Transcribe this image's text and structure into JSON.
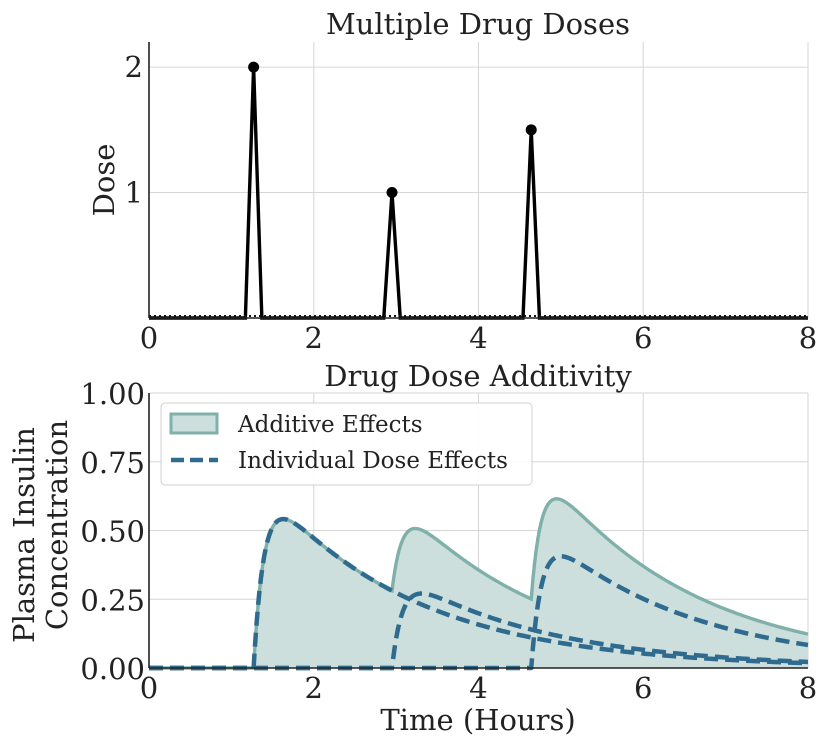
{
  "chart_data": [
    {
      "type": "line",
      "title": "Multiple Drug Doses",
      "xlabel": "",
      "ylabel": "Dose",
      "xlim": [
        0,
        8
      ],
      "ylim": [
        0,
        2.2
      ],
      "xticks": [
        "0",
        "2",
        "4",
        "6",
        "8"
      ],
      "yticks": [
        "1",
        "2"
      ],
      "grid": true,
      "series": [
        {
          "name": "Dose",
          "color": "#000000",
          "x": [
            0,
            1.17,
            1.27,
            1.37,
            2.85,
            2.95,
            3.05,
            4.54,
            4.64,
            4.74,
            8
          ],
          "y": [
            0,
            0,
            2,
            0,
            0,
            1,
            0,
            0,
            1.5,
            0,
            0
          ]
        }
      ],
      "markers": {
        "x": [
          1.27,
          2.95,
          4.64
        ],
        "y": [
          2,
          1,
          1.5
        ]
      }
    },
    {
      "type": "area",
      "title": "Drug Dose Additivity",
      "xlabel": "Time (Hours)",
      "ylabel_lines": [
        "Plasma Insulin",
        "Concentration"
      ],
      "xlim": [
        0,
        8
      ],
      "ylim": [
        0,
        1
      ],
      "xticks": [
        "0",
        "2",
        "4",
        "6",
        "8"
      ],
      "yticks": [
        "0.00",
        "0.25",
        "0.50",
        "0.75",
        "1.00"
      ],
      "grid": true,
      "legend": {
        "position": "top-left",
        "additive_label": "Additive Effects",
        "individual_label": "Individual Dose Effects"
      },
      "doses": [
        {
          "t0": 1.27,
          "amount": 2
        },
        {
          "t0": 2.95,
          "amount": 1
        },
        {
          "t0": 4.64,
          "amount": 1.5
        }
      ],
      "series": [
        {
          "name": "Additive Effects",
          "fill": "#cddfdd",
          "line": "#7fb0aa"
        },
        {
          "name": "Individual Dose Effects",
          "color": "#2e6b8e",
          "dash": "dashed"
        }
      ]
    }
  ]
}
